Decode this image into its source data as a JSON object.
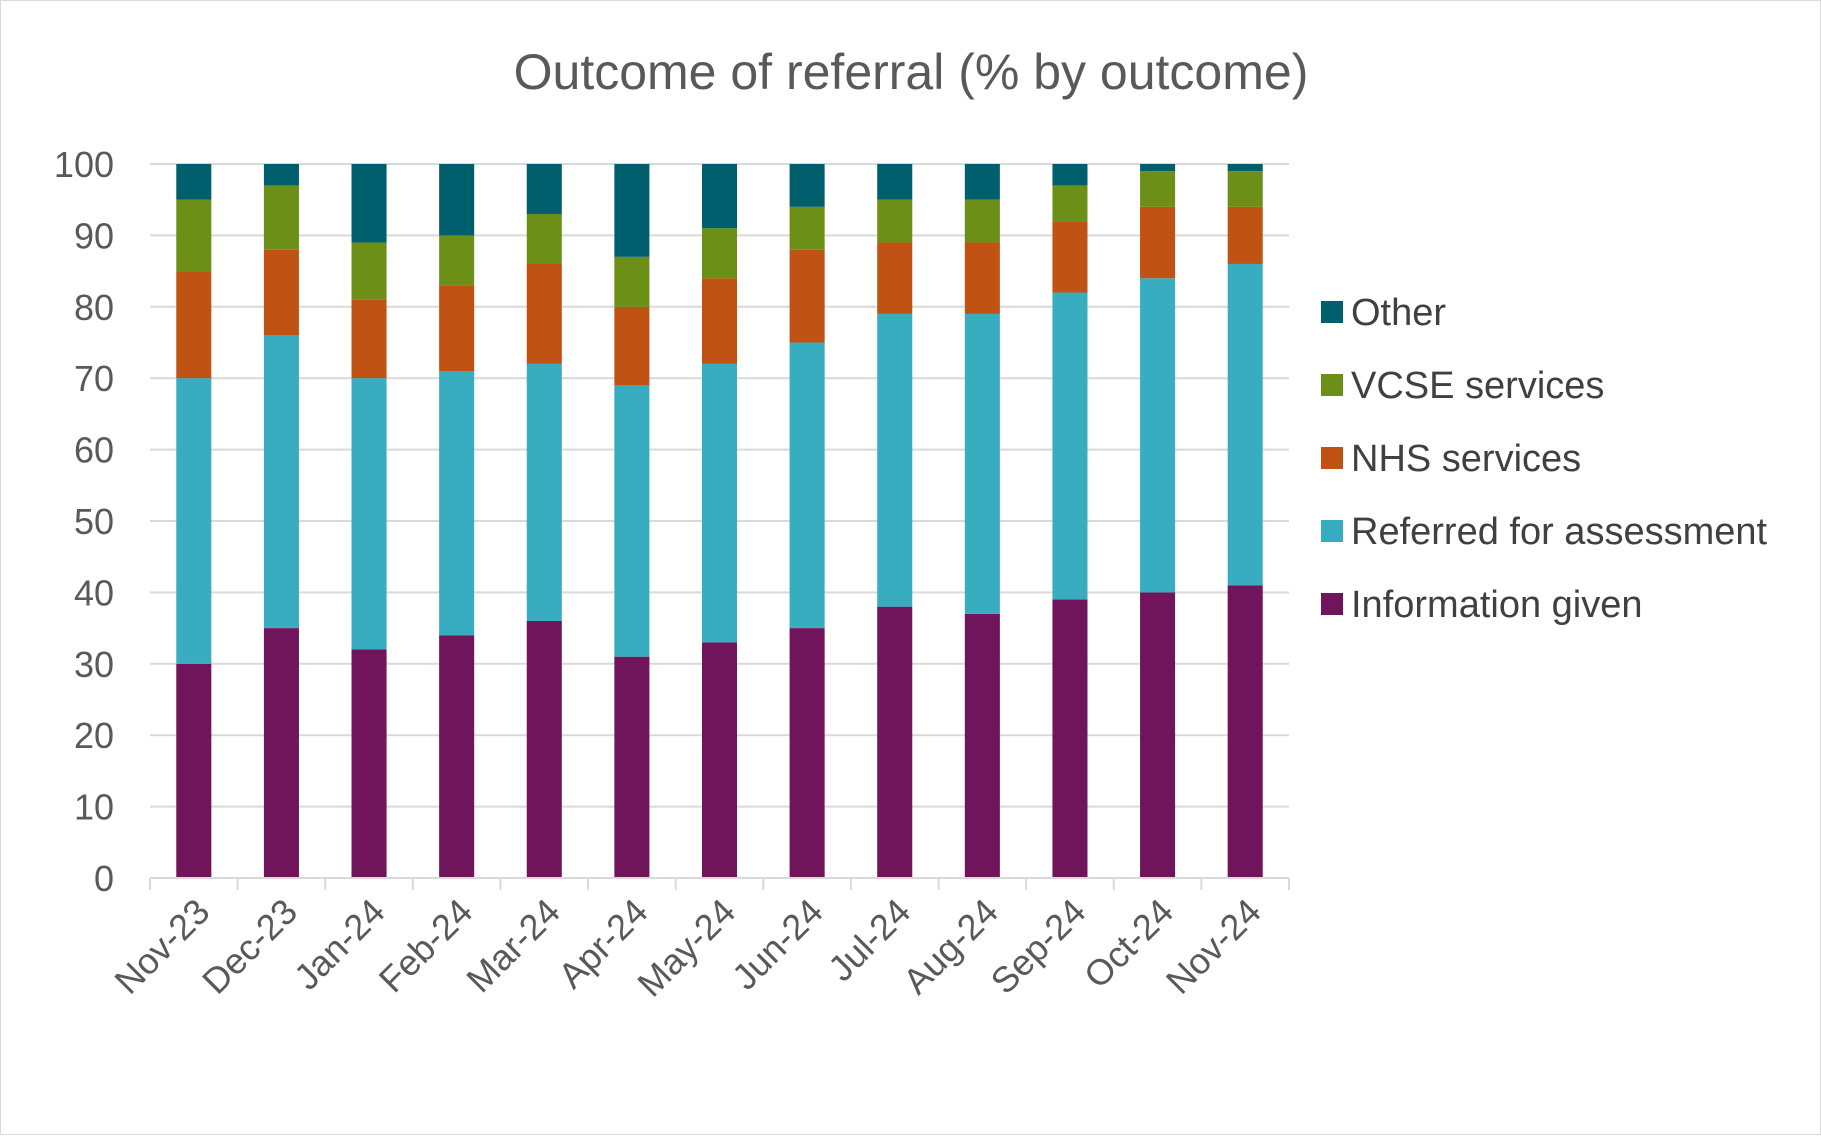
{
  "chart_data": {
    "type": "bar",
    "stacked": true,
    "title": "Outcome of referral (% by outcome)",
    "xlabel": "",
    "ylabel": "",
    "ylim": [
      0,
      100
    ],
    "yticks": [
      0,
      10,
      20,
      30,
      40,
      50,
      60,
      70,
      80,
      90,
      100
    ],
    "grid": true,
    "legend_position": "right",
    "categories": [
      "Nov-23",
      "Dec-23",
      "Jan-24",
      "Feb-24",
      "Mar-24",
      "Apr-24",
      "May-24",
      "Jun-24",
      "Jul-24",
      "Aug-24",
      "Sep-24",
      "Oct-24",
      "Nov-24"
    ],
    "series": [
      {
        "name": "Information given",
        "color": "#70145c",
        "values": [
          30,
          35,
          32,
          34,
          36,
          31,
          33,
          35,
          38,
          37,
          39,
          40,
          41
        ]
      },
      {
        "name": "Referred for assessment",
        "color": "#38adbf",
        "values": [
          40,
          41,
          38,
          37,
          36,
          38,
          39,
          40,
          41,
          42,
          43,
          44,
          45
        ]
      },
      {
        "name": "NHS services",
        "color": "#c05313",
        "values": [
          15,
          12,
          11,
          12,
          14,
          11,
          12,
          13,
          10,
          10,
          10,
          10,
          8
        ]
      },
      {
        "name": "VCSE services",
        "color": "#6b8f17",
        "values": [
          10,
          9,
          8,
          7,
          7,
          7,
          7,
          6,
          6,
          6,
          5,
          5,
          5
        ]
      },
      {
        "name": "Other",
        "color": "#005f6c",
        "values": [
          5,
          3,
          11,
          10,
          7,
          13,
          9,
          6,
          5,
          5,
          3,
          1,
          1
        ]
      }
    ]
  }
}
